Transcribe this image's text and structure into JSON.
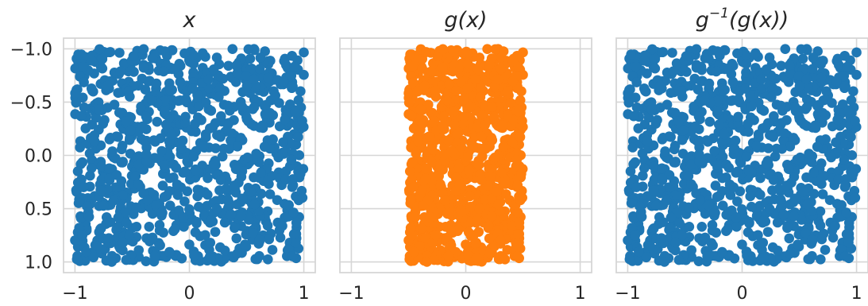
{
  "chart_data": [
    {
      "type": "scatter",
      "title": "x",
      "title_base": "",
      "title_sup": "",
      "title_rest": "",
      "color": "#1f77b4",
      "point_count": 1000,
      "distribution": "uniform",
      "x_range": [
        -1,
        1
      ],
      "y_range": [
        -1,
        1
      ],
      "xlim": [
        -1.1,
        1.1
      ],
      "ylim": [
        -1.1,
        1.1
      ],
      "xticks": [
        -1,
        0,
        1
      ],
      "xtick_labels": [
        "−1",
        "0",
        "1"
      ],
      "yticks": [
        -1.0,
        -0.5,
        0.0,
        0.5,
        1.0
      ],
      "ytick_labels": [
        "−1.0",
        "−0.5",
        "0.0",
        "0.5",
        "1.0"
      ],
      "show_yticklabels": true,
      "grid": true
    },
    {
      "type": "scatter",
      "title": "g(x)",
      "title_base": "",
      "title_sup": "",
      "title_rest": "",
      "color": "#ff7f0e",
      "point_count": 1000,
      "distribution": "uniform",
      "x_range": [
        -0.5,
        0.5
      ],
      "y_range": [
        -1,
        1
      ],
      "xlim": [
        -1.1,
        1.1
      ],
      "ylim": [
        -1.1,
        1.1
      ],
      "xticks": [
        -1,
        0,
        1
      ],
      "xtick_labels": [
        "−1",
        "0",
        "1"
      ],
      "yticks": [
        -1.0,
        -0.5,
        0.0,
        0.5,
        1.0
      ],
      "ytick_labels": [],
      "show_yticklabels": false,
      "grid": true
    },
    {
      "type": "scatter",
      "title": "g−1(g(x))",
      "title_base": "g",
      "title_sup": "−1",
      "title_rest": "(g(x))",
      "color": "#1f77b4",
      "point_count": 1000,
      "distribution": "uniform",
      "x_range": [
        -1,
        1
      ],
      "y_range": [
        -1,
        1
      ],
      "xlim": [
        -1.1,
        1.1
      ],
      "ylim": [
        -1.1,
        1.1
      ],
      "xticks": [
        -1,
        0,
        1
      ],
      "xtick_labels": [
        "−1",
        "0",
        "1"
      ],
      "yticks": [
        -1.0,
        -0.5,
        0.0,
        0.5,
        1.0
      ],
      "ytick_labels": [],
      "show_yticklabels": false,
      "grid": true
    }
  ]
}
